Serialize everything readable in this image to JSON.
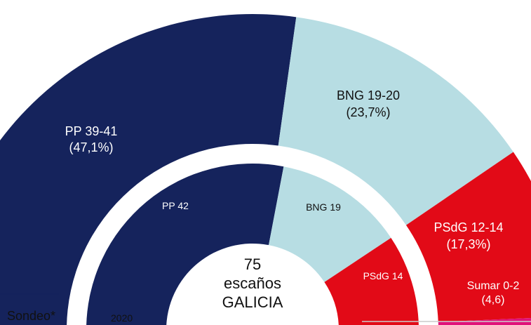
{
  "chart_data": [
    {
      "type": "pie",
      "subtype": "half-donut",
      "label": "Sondeo*",
      "units": "escaños",
      "series": [
        {
          "party": "PP",
          "label": "PP 39-41",
          "seats_min": 39,
          "seats_max": 41,
          "vote_pct": 47.1,
          "pct_label": "(47,1%)",
          "color": "#15235c"
        },
        {
          "party": "BNG",
          "label": "BNG 19-20",
          "seats_min": 19,
          "seats_max": 20,
          "vote_pct": 23.7,
          "pct_label": "(23,7%)",
          "color": "#b7dde3"
        },
        {
          "party": "PSdG",
          "label": "PSdG 12-14",
          "seats_min": 12,
          "seats_max": 14,
          "vote_pct": 17.3,
          "pct_label": "(17,3%)",
          "color": "#e20a17"
        },
        {
          "party": "Sumar",
          "label": "Sumar 0-2",
          "seats_min": 0,
          "seats_max": 2,
          "vote_pct": 4.6,
          "pct_label": "(4,6)",
          "color": "#e0127a"
        }
      ]
    },
    {
      "type": "pie",
      "subtype": "half-donut",
      "label": "2020",
      "units": "escaños",
      "series": [
        {
          "party": "PP",
          "label": "PP 42",
          "seats": 42,
          "color": "#15235c"
        },
        {
          "party": "BNG",
          "label": "BNG 19",
          "seats": 19,
          "color": "#b7dde3"
        },
        {
          "party": "PSdG",
          "label": "PSdG 14",
          "seats": 14,
          "color": "#e20a17"
        }
      ]
    }
  ],
  "center": {
    "number": "75",
    "word": "escaños",
    "region": "GALICIA"
  },
  "legend": {
    "outer": "Sondeo*",
    "inner": "2020"
  }
}
